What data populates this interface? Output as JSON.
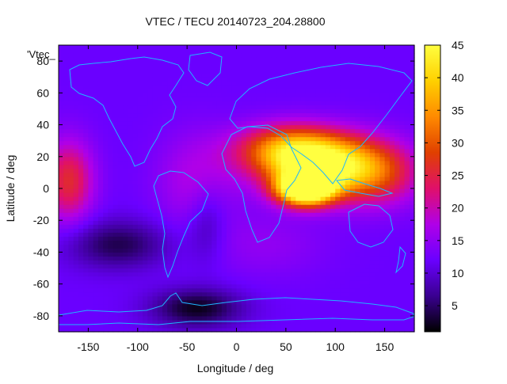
{
  "chart_data": {
    "type": "heatmap",
    "title": "VTEC / TECU 20140723_204.28800",
    "legend_label": "'Vtec_",
    "xlabel": "Longitude / deg",
    "ylabel": "Latitude / deg",
    "xlim": [
      -180,
      180
    ],
    "ylim": [
      -90,
      90
    ],
    "xticks": [
      -150,
      -100,
      -50,
      0,
      50,
      100,
      150
    ],
    "yticks": [
      -80,
      -60,
      -40,
      -20,
      0,
      20,
      40,
      60,
      80
    ],
    "colorbar": {
      "range": [
        1,
        45
      ],
      "ticks": [
        5,
        10,
        15,
        20,
        25,
        30,
        35,
        40,
        45
      ],
      "stops": [
        "#000000",
        "#3a0090",
        "#6a00ff",
        "#b000e8",
        "#e0106a",
        "#e04000",
        "#ff8a00",
        "#ffd000",
        "#ffff40"
      ]
    },
    "hotspots": [
      {
        "lon": 70,
        "lat": 0,
        "value": 42,
        "slon": 28,
        "slat": 10
      },
      {
        "lon": 85,
        "lat": 15,
        "value": 30,
        "slon": 55,
        "slat": 18
      },
      {
        "lon": 50,
        "lat": 25,
        "value": 18,
        "slon": 50,
        "slat": 15
      },
      {
        "lon": 140,
        "lat": 10,
        "value": 14,
        "slon": 45,
        "slat": 20
      },
      {
        "lon": -170,
        "lat": 5,
        "value": 14,
        "slon": 25,
        "slat": 25
      },
      {
        "lon": -40,
        "lat": 5,
        "value": 6,
        "slon": 40,
        "slat": 30
      },
      {
        "lon": 30,
        "lat": -35,
        "value": 3,
        "slon": 60,
        "slat": 20
      }
    ],
    "background_value": 12,
    "lowspots": [
      {
        "lon": -40,
        "lat": -75,
        "value": -10,
        "slon": 45,
        "slat": 12
      },
      {
        "lon": -120,
        "lat": -35,
        "value": -8,
        "slon": 50,
        "slat": 15
      },
      {
        "lon": -30,
        "lat": -20,
        "value": -5,
        "slon": 20,
        "slat": 25
      }
    ]
  },
  "colors": {
    "coastline": "#1fb6ff",
    "axis": "#000000"
  }
}
